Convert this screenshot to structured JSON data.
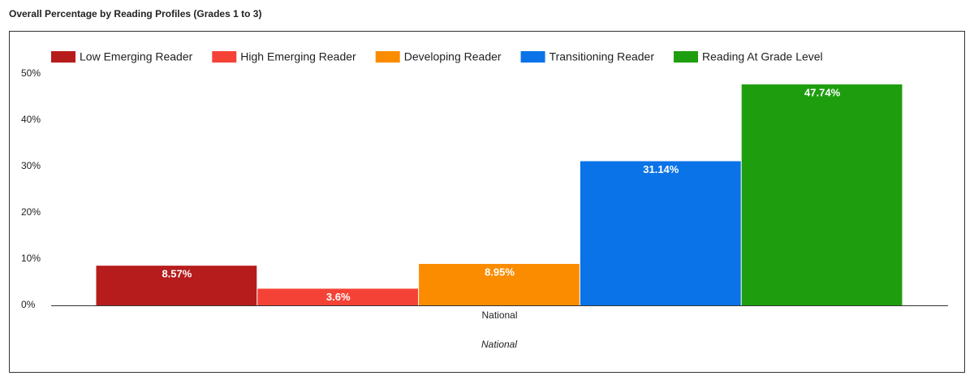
{
  "chart_data": {
    "type": "bar",
    "title": "Overall Percentage by Reading Profiles (Grades 1 to 3)",
    "categories": [
      "National"
    ],
    "x_label": "National",
    "series": [
      {
        "name": "Low Emerging Reader",
        "color": "#b71c1c",
        "values": [
          8.57
        ],
        "value_labels": [
          "8.57%"
        ]
      },
      {
        "name": "High Emerging Reader",
        "color": "#f44336",
        "values": [
          3.6
        ],
        "value_labels": [
          "3.6%"
        ]
      },
      {
        "name": "Developing Reader",
        "color": "#fb8c00",
        "values": [
          8.95
        ],
        "value_labels": [
          "8.95%"
        ]
      },
      {
        "name": "Transitioning Reader",
        "color": "#0a73e8",
        "values": [
          31.14
        ],
        "value_labels": [
          "31.14%"
        ]
      },
      {
        "name": "Reading At Grade Level",
        "color": "#1e9e0f",
        "values": [
          47.74
        ],
        "value_labels": [
          "47.74%"
        ]
      }
    ],
    "ylim": [
      0,
      50
    ],
    "yticks": [
      {
        "value": 0,
        "label": "0%"
      },
      {
        "value": 10,
        "label": "10%"
      },
      {
        "value": 20,
        "label": "20%"
      },
      {
        "value": 30,
        "label": "30%"
      },
      {
        "value": 40,
        "label": "40%"
      },
      {
        "value": 50,
        "label": "50%"
      }
    ],
    "legend": "top",
    "grid": false
  }
}
